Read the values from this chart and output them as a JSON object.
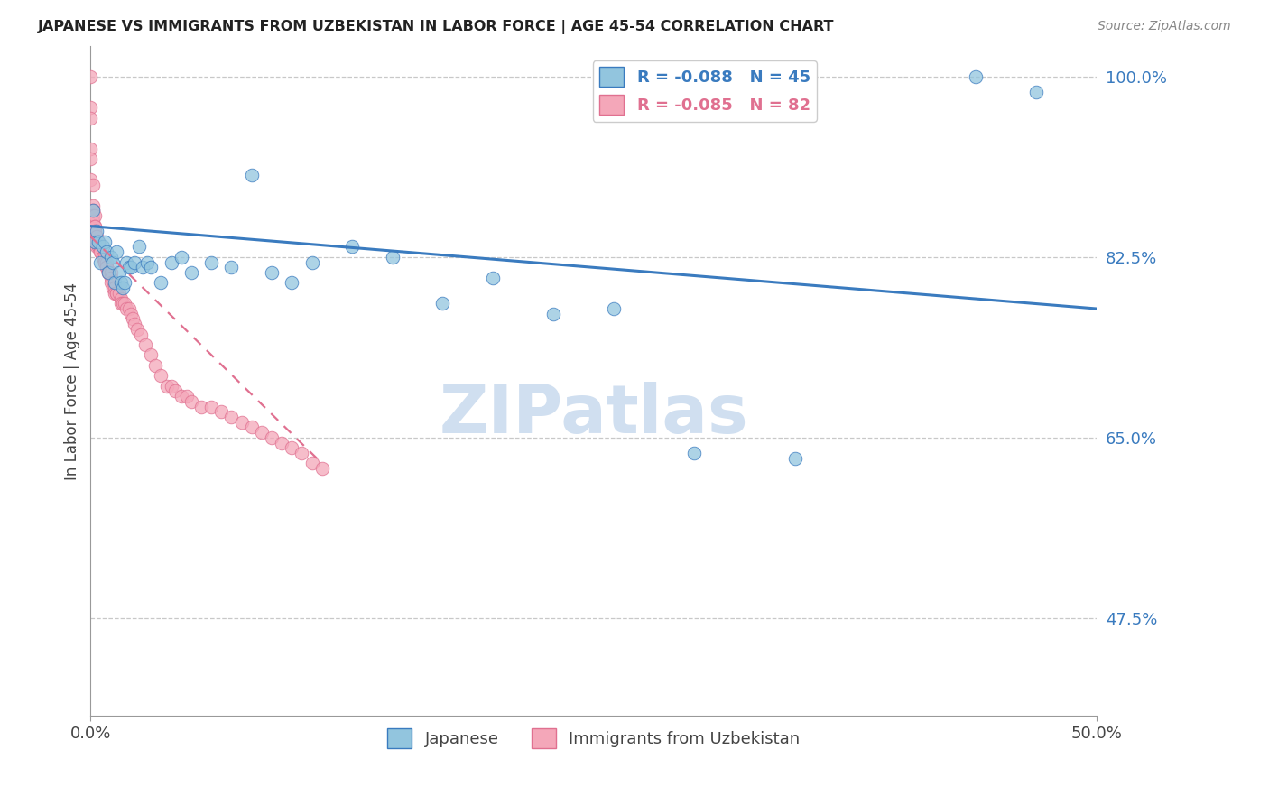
{
  "title": "JAPANESE VS IMMIGRANTS FROM UZBEKISTAN IN LABOR FORCE | AGE 45-54 CORRELATION CHART",
  "source_text": "Source: ZipAtlas.com",
  "ylabel": "In Labor Force | Age 45-54",
  "ytick_labels": [
    "100.0%",
    "82.5%",
    "65.0%",
    "47.5%"
  ],
  "ytick_values": [
    1.0,
    0.825,
    0.65,
    0.475
  ],
  "xmin": 0.0,
  "xmax": 0.5,
  "ymin": 0.38,
  "ymax": 1.03,
  "blue_R": -0.088,
  "blue_N": 45,
  "pink_R": -0.085,
  "pink_N": 82,
  "legend_blue_label": "Japanese",
  "legend_pink_label": "Immigrants from Uzbekistan",
  "blue_color": "#92c5de",
  "pink_color": "#f4a7b9",
  "blue_line_color": "#3a7bbf",
  "pink_line_color": "#e07090",
  "background_color": "#ffffff",
  "grid_color": "#bbbbbb",
  "title_color": "#222222",
  "axis_label_color": "#444444",
  "right_tick_color": "#3a7bbf",
  "watermark_color": "#d0dff0",
  "blue_trend_x0": 0.0,
  "blue_trend_x1": 0.5,
  "blue_trend_y0": 0.855,
  "blue_trend_y1": 0.775,
  "pink_trend_x0": 0.0,
  "pink_trend_x1": 0.115,
  "pink_trend_y0": 0.845,
  "pink_trend_y1": 0.625,
  "blue_scatter_x": [
    0.001,
    0.002,
    0.003,
    0.004,
    0.005,
    0.006,
    0.007,
    0.008,
    0.009,
    0.01,
    0.011,
    0.012,
    0.013,
    0.014,
    0.015,
    0.016,
    0.017,
    0.018,
    0.019,
    0.02,
    0.022,
    0.024,
    0.026,
    0.028,
    0.03,
    0.035,
    0.04,
    0.045,
    0.05,
    0.06,
    0.07,
    0.08,
    0.09,
    0.1,
    0.11,
    0.13,
    0.15,
    0.175,
    0.2,
    0.23,
    0.26,
    0.3,
    0.35,
    0.44,
    0.47
  ],
  "blue_scatter_y": [
    0.87,
    0.84,
    0.85,
    0.84,
    0.82,
    0.835,
    0.84,
    0.83,
    0.81,
    0.825,
    0.82,
    0.8,
    0.83,
    0.81,
    0.8,
    0.795,
    0.8,
    0.82,
    0.815,
    0.815,
    0.82,
    0.835,
    0.815,
    0.82,
    0.815,
    0.8,
    0.82,
    0.825,
    0.81,
    0.82,
    0.815,
    0.905,
    0.81,
    0.8,
    0.82,
    0.835,
    0.825,
    0.78,
    0.805,
    0.77,
    0.775,
    0.635,
    0.63,
    1.0,
    0.985
  ],
  "pink_scatter_x": [
    0.0,
    0.0,
    0.0,
    0.0,
    0.0,
    0.0,
    0.001,
    0.001,
    0.001,
    0.001,
    0.001,
    0.001,
    0.002,
    0.002,
    0.002,
    0.002,
    0.002,
    0.003,
    0.003,
    0.003,
    0.003,
    0.004,
    0.004,
    0.004,
    0.005,
    0.005,
    0.005,
    0.006,
    0.006,
    0.006,
    0.007,
    0.007,
    0.007,
    0.008,
    0.008,
    0.008,
    0.009,
    0.009,
    0.01,
    0.01,
    0.01,
    0.011,
    0.011,
    0.012,
    0.012,
    0.013,
    0.013,
    0.014,
    0.015,
    0.015,
    0.016,
    0.017,
    0.018,
    0.019,
    0.02,
    0.021,
    0.022,
    0.023,
    0.025,
    0.027,
    0.03,
    0.032,
    0.035,
    0.038,
    0.04,
    0.042,
    0.045,
    0.048,
    0.05,
    0.055,
    0.06,
    0.065,
    0.07,
    0.075,
    0.08,
    0.085,
    0.09,
    0.095,
    0.1,
    0.105,
    0.11,
    0.115
  ],
  "pink_scatter_y": [
    1.0,
    0.97,
    0.96,
    0.93,
    0.92,
    0.9,
    0.895,
    0.875,
    0.87,
    0.87,
    0.865,
    0.86,
    0.865,
    0.855,
    0.855,
    0.85,
    0.85,
    0.845,
    0.84,
    0.84,
    0.835,
    0.84,
    0.835,
    0.835,
    0.835,
    0.83,
    0.83,
    0.825,
    0.825,
    0.825,
    0.825,
    0.82,
    0.82,
    0.82,
    0.815,
    0.815,
    0.81,
    0.81,
    0.81,
    0.805,
    0.8,
    0.8,
    0.795,
    0.795,
    0.79,
    0.79,
    0.79,
    0.79,
    0.785,
    0.78,
    0.78,
    0.78,
    0.775,
    0.775,
    0.77,
    0.765,
    0.76,
    0.755,
    0.75,
    0.74,
    0.73,
    0.72,
    0.71,
    0.7,
    0.7,
    0.695,
    0.69,
    0.69,
    0.685,
    0.68,
    0.68,
    0.675,
    0.67,
    0.665,
    0.66,
    0.655,
    0.65,
    0.645,
    0.64,
    0.635,
    0.625,
    0.62
  ]
}
